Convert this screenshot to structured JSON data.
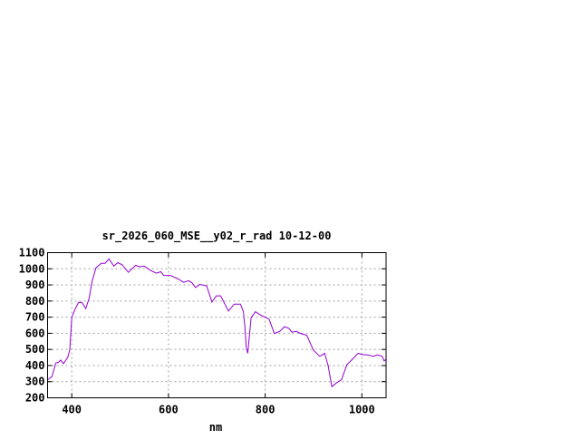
{
  "chart_data": {
    "type": "line",
    "title": "sr_2026_060_MSE__y02_r_rad 10-12-00",
    "xlabel": "nm",
    "ylabel": "",
    "xlim": [
      350,
      1050
    ],
    "ylim": [
      200,
      1100
    ],
    "xticks": [
      400,
      600,
      800,
      1000
    ],
    "yticks": [
      200,
      300,
      400,
      500,
      600,
      700,
      800,
      900,
      1000,
      1100
    ],
    "grid": true,
    "legend": "none",
    "line_color": "#9400d3",
    "series": [
      {
        "x": [
          350,
          359,
          367,
          373,
          377,
          383,
          392,
          396,
          400,
          406,
          414,
          421,
          429,
          436,
          442,
          450,
          461,
          469,
          477,
          487,
          495,
          504,
          517,
          532,
          540,
          550,
          564,
          575,
          584,
          590,
          604,
          620,
          631,
          642,
          649,
          656,
          661,
          665,
          679,
          690,
          699,
          708,
          724,
          736,
          749,
          755,
          758,
          761,
          764,
          771,
          780,
          789,
          799,
          808,
          819,
          830,
          840,
          849,
          855,
          865,
          873,
          886,
          892,
          900,
          913,
          923,
          930,
          938,
          948,
          958,
          969,
          983,
          992,
          1001,
          1014,
          1023,
          1032,
          1042,
          1046,
          1050
        ],
        "y": [
          312,
          331,
          416,
          421,
          434,
          412,
          453,
          500,
          697,
          744,
          791,
          791,
          753,
          819,
          922,
          1006,
          1034,
          1034,
          1062,
          1016,
          1038,
          1025,
          978,
          1021,
          1012,
          1016,
          988,
          973,
          982,
          959,
          959,
          937,
          916,
          926,
          912,
          884,
          894,
          903,
          894,
          794,
          832,
          832,
          738,
          781,
          781,
          734,
          641,
          509,
          476,
          697,
          734,
          716,
          700,
          688,
          599,
          612,
          641,
          631,
          607,
          612,
          599,
          588,
          547,
          494,
          457,
          476,
          401,
          269,
          294,
          312,
          406,
          447,
          476,
          468,
          466,
          457,
          466,
          457,
          429,
          438
        ]
      }
    ]
  }
}
